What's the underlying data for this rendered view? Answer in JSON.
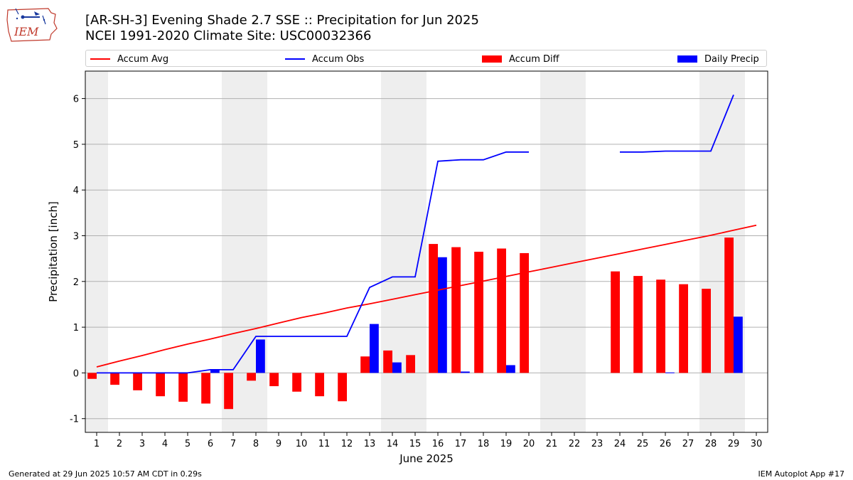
{
  "logo": {
    "text": "IEM",
    "icon": "iem-iowa-logo"
  },
  "title": {
    "line1": "[AR-SH-3] Evening Shade 2.7 SSE :: Precipitation for Jun 2025",
    "line2": "NCEI 1991-2020 Climate Site: USC00032366"
  },
  "legend": {
    "items": [
      {
        "label": "Accum Avg",
        "color": "#ff0000",
        "kind": "line"
      },
      {
        "label": "Accum Obs",
        "color": "#0000ff",
        "kind": "line"
      },
      {
        "label": "Accum Diff",
        "color": "#ff0000",
        "kind": "bar"
      },
      {
        "label": "Daily Precip",
        "color": "#0000ff",
        "kind": "bar"
      }
    ]
  },
  "chart_data": {
    "type": "bar",
    "title": "[AR-SH-3] Evening Shade 2.7 SSE :: Precipitation for Jun 2025",
    "subtitle": "NCEI 1991-2020 Climate Site: USC00032366",
    "xlabel": "June 2025",
    "ylabel": "Precipitation [inch]",
    "x": [
      1,
      2,
      3,
      4,
      5,
      6,
      7,
      8,
      9,
      10,
      11,
      12,
      13,
      14,
      15,
      16,
      17,
      18,
      19,
      20,
      21,
      22,
      23,
      24,
      25,
      26,
      27,
      28,
      29,
      30
    ],
    "xlim": [
      0.5,
      30.5
    ],
    "ylim": [
      -1.3,
      6.6
    ],
    "yticks": [
      -1,
      0,
      1,
      2,
      3,
      4,
      5,
      6
    ],
    "grid": "horizontal",
    "weekend_shading_days": [
      1,
      7,
      8,
      14,
      15,
      21,
      22,
      28,
      29
    ],
    "shading_color": "#eeeeee",
    "legend_position": "top",
    "series": [
      {
        "name": "Accum Avg",
        "type": "line",
        "color": "#ff0000",
        "values": [
          0.13,
          0.26,
          0.38,
          0.51,
          0.63,
          0.74,
          0.86,
          0.97,
          1.09,
          1.21,
          1.31,
          1.42,
          1.51,
          1.61,
          1.71,
          1.81,
          1.91,
          2.01,
          2.11,
          2.21,
          2.31,
          2.41,
          2.51,
          2.61,
          2.71,
          2.81,
          2.91,
          3.01,
          3.12,
          3.23
        ]
      },
      {
        "name": "Accum Obs",
        "type": "line",
        "color": "#0000ff",
        "values": [
          0.0,
          0.0,
          0.0,
          0.0,
          0.0,
          0.07,
          0.07,
          0.8,
          0.8,
          0.8,
          0.8,
          0.8,
          1.87,
          2.1,
          2.1,
          4.63,
          4.66,
          4.66,
          4.83,
          4.83,
          null,
          null,
          null,
          4.83,
          4.83,
          4.85,
          4.85,
          4.85,
          6.08,
          null
        ]
      },
      {
        "name": "Accum Diff",
        "type": "bar",
        "color": "#ff0000",
        "values": [
          -0.13,
          -0.26,
          -0.38,
          -0.51,
          -0.63,
          -0.67,
          -0.79,
          -0.17,
          -0.29,
          -0.41,
          -0.51,
          -0.62,
          0.36,
          0.49,
          0.39,
          2.82,
          2.75,
          2.65,
          2.72,
          2.62,
          null,
          null,
          null,
          2.22,
          2.12,
          2.04,
          1.94,
          1.84,
          2.96,
          null
        ]
      },
      {
        "name": "Daily Precip",
        "type": "bar",
        "color": "#0000ff",
        "values": [
          0,
          0,
          0,
          0,
          0,
          0.07,
          0,
          0.73,
          0,
          0,
          0,
          0,
          1.07,
          0.23,
          0,
          2.53,
          0.03,
          0,
          0.17,
          0,
          null,
          null,
          null,
          0,
          0,
          0.01,
          0,
          0,
          1.23,
          null
        ]
      }
    ]
  },
  "footer": {
    "left": "Generated at 29 Jun 2025 10:57 AM CDT in 0.29s",
    "right": "IEM Autoplot App #17"
  }
}
